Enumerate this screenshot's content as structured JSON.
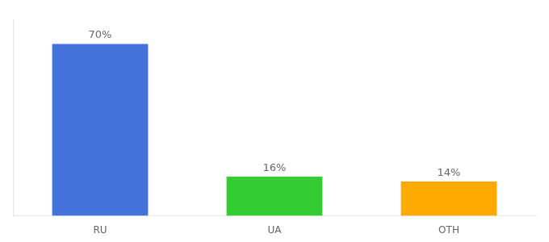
{
  "chart_data": {
    "type": "bar",
    "categories": [
      "RU",
      "UA",
      "OTH"
    ],
    "values": [
      70,
      16,
      14
    ],
    "value_labels": [
      "70%",
      "16%",
      "14%"
    ],
    "colors": [
      "#4472db",
      "#33cc33",
      "#ffaa00"
    ],
    "ylim": [
      0,
      80
    ],
    "grid": false,
    "data_labels": true,
    "tick_labels": "x"
  }
}
